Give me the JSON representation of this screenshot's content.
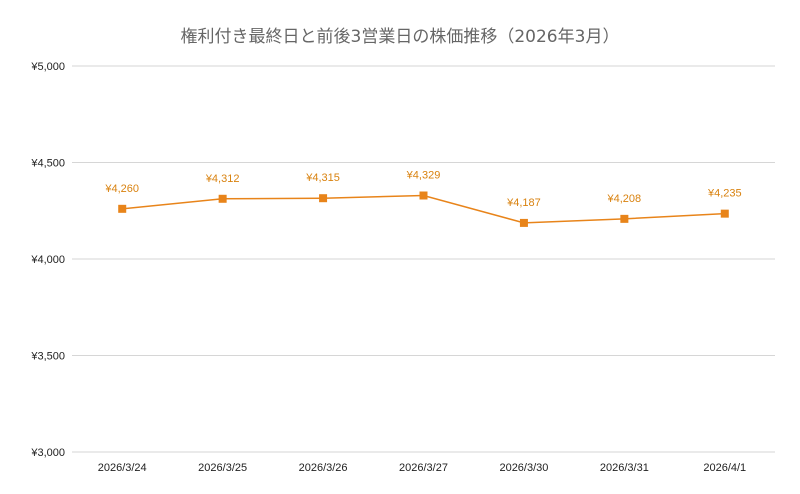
{
  "chart_data": {
    "type": "line",
    "title": "権利付き最終日と前後3営業日の株価推移（2026年3月）",
    "categories": [
      "2026/3/24",
      "2026/3/25",
      "2026/3/26",
      "2026/3/27",
      "2026/3/30",
      "2026/3/31",
      "2026/4/1"
    ],
    "series": [
      {
        "values": [
          4260,
          4312,
          4315,
          4329,
          4187,
          4208,
          4235
        ],
        "data_labels": [
          "¥4,260",
          "¥4,312",
          "¥4,315",
          "¥4,329",
          "¥4,187",
          "¥4,208",
          "¥4,235"
        ],
        "color": "#e8841a",
        "marker": "square"
      }
    ],
    "ylim": [
      3000,
      5000
    ],
    "yticks": [
      3000,
      3500,
      4000,
      4500,
      5000
    ],
    "ytick_labels": [
      "¥3,000",
      "¥3,500",
      "¥4,000",
      "¥4,500",
      "¥5,000"
    ],
    "grid": true,
    "legend": "none",
    "xlabel": "",
    "ylabel": ""
  }
}
